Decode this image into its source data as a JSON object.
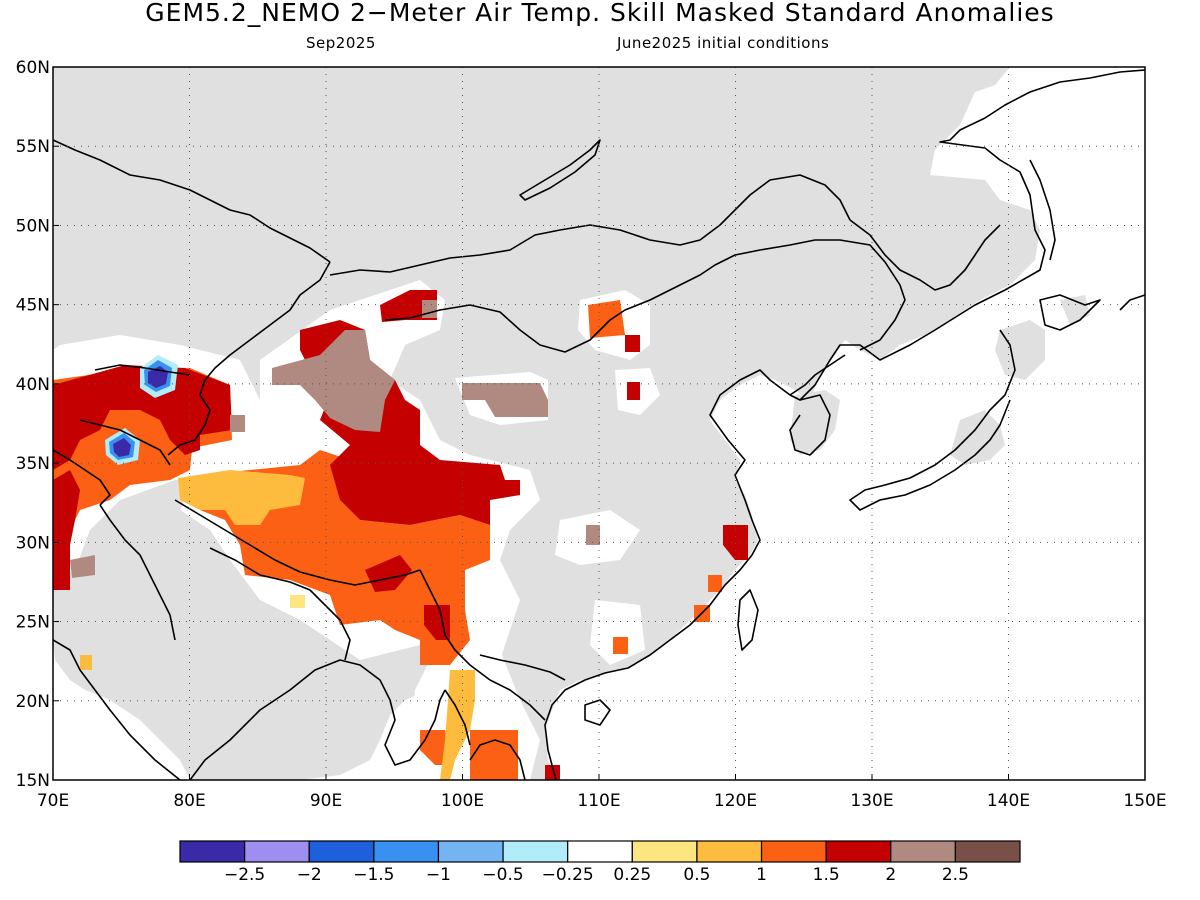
{
  "title": "GEM5.2_NEMO 2−Meter Air Temp. Skill Masked Standard Anomalies",
  "subtitle_left": "Sep2025",
  "subtitle_right": "June2025 initial conditions",
  "map": {
    "lon_range": [
      70,
      150
    ],
    "lat_range": [
      15,
      60
    ],
    "lon_ticks": [
      "70E",
      "80E",
      "90E",
      "100E",
      "110E",
      "120E",
      "130E",
      "140E",
      "150E"
    ],
    "lat_ticks": [
      "15N",
      "20N",
      "25N",
      "30N",
      "35N",
      "40N",
      "45N",
      "50N",
      "55N",
      "60N"
    ],
    "gridlines": "dotted",
    "colors": {
      "masked": "#e0e0e0",
      "ocean": "#ffffff",
      "coast": "#000000"
    }
  },
  "colorbar": {
    "colors": [
      "#3a2aa8",
      "#9d8ef0",
      "#1e5fdc",
      "#3a90f0",
      "#74b4f2",
      "#b0ecfa",
      "#ffffff",
      "#fde580",
      "#fdbc3e",
      "#fb6014",
      "#c40000",
      "#b08a80",
      "#785048"
    ],
    "labels": [
      "−2.5",
      "−2",
      "−1.5",
      "−1",
      "−0.5",
      "−0.25",
      "0.25",
      "0.5",
      "1",
      "1.5",
      "2",
      "2.5"
    ]
  }
}
